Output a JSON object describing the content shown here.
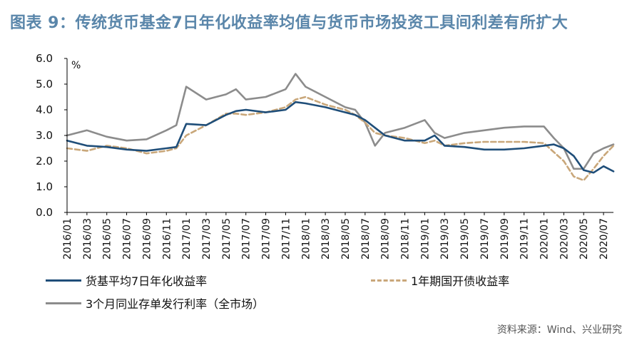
{
  "title": "图表 9：传统货币基金7日年化收益率均值与货币市场投资工具间利差有所扩大",
  "source": "资料来源：Wind、兴业研究",
  "chart_data": {
    "type": "line",
    "yunit": "%",
    "ylim": [
      0,
      6
    ],
    "yticks": [
      "0.0",
      "1.0",
      "2.0",
      "3.0",
      "4.0",
      "5.0",
      "6.0"
    ],
    "xticks": [
      "2016/01",
      "2016/03",
      "2016/05",
      "2016/07",
      "2016/09",
      "2016/11",
      "2017/01",
      "2017/03",
      "2017/05",
      "2017/07",
      "2017/09",
      "2017/11",
      "2018/01",
      "2018/03",
      "2018/05",
      "2018/07",
      "2018/09",
      "2018/11",
      "2019/01",
      "2019/03",
      "2019/05",
      "2019/07",
      "2019/09",
      "2019/11",
      "2020/01",
      "2020/03",
      "2020/05",
      "2020/07"
    ],
    "x": [
      "2016/01",
      "2016/03",
      "2016/05",
      "2016/07",
      "2016/09",
      "2016/11",
      "2016/12",
      "2017/01",
      "2017/03",
      "2017/05",
      "2017/06",
      "2017/07",
      "2017/09",
      "2017/11",
      "2017/12",
      "2018/01",
      "2018/03",
      "2018/05",
      "2018/06",
      "2018/07",
      "2018/08",
      "2018/09",
      "2018/11",
      "2019/01",
      "2019/02",
      "2019/03",
      "2019/05",
      "2019/07",
      "2019/09",
      "2019/11",
      "2020/01",
      "2020/02",
      "2020/03",
      "2020/04",
      "2020/05",
      "2020/06",
      "2020/07",
      "2020/08"
    ],
    "series": [
      {
        "name": "货基平均7日年化收益率",
        "color": "#1f4e79",
        "dash": "solid",
        "values": [
          2.8,
          2.6,
          2.55,
          2.45,
          2.4,
          2.5,
          2.55,
          3.45,
          3.4,
          3.8,
          3.95,
          4.0,
          3.9,
          4.0,
          4.3,
          4.25,
          4.1,
          3.9,
          3.8,
          3.6,
          3.3,
          3.0,
          2.8,
          2.8,
          3.0,
          2.6,
          2.55,
          2.45,
          2.45,
          2.5,
          2.6,
          2.65,
          2.5,
          2.2,
          1.65,
          1.55,
          1.8,
          1.6
        ]
      },
      {
        "name": "1年期国开债收益率",
        "color": "#c9a77a",
        "dash": "dashed",
        "values": [
          2.5,
          2.4,
          2.6,
          2.5,
          2.3,
          2.4,
          2.5,
          3.0,
          3.4,
          3.85,
          3.85,
          3.8,
          3.9,
          4.1,
          4.4,
          4.5,
          4.2,
          4.0,
          3.8,
          3.5,
          3.1,
          3.0,
          2.9,
          2.7,
          2.8,
          2.6,
          2.7,
          2.75,
          2.75,
          2.75,
          2.7,
          2.35,
          2.0,
          1.4,
          1.25,
          1.7,
          2.2,
          2.6
        ]
      },
      {
        "name": "3个月同业存单发行利率（全市场）",
        "color": "#8c8c8c",
        "dash": "solid",
        "values": [
          3.0,
          3.2,
          2.95,
          2.8,
          2.85,
          3.2,
          3.4,
          4.9,
          4.4,
          4.6,
          4.8,
          4.4,
          4.5,
          4.8,
          5.4,
          4.9,
          4.5,
          4.1,
          4.0,
          3.5,
          2.6,
          3.1,
          3.3,
          3.6,
          3.1,
          2.9,
          3.1,
          3.2,
          3.3,
          3.35,
          3.35,
          2.9,
          2.5,
          1.7,
          1.7,
          2.3,
          2.5,
          2.65
        ]
      }
    ]
  }
}
